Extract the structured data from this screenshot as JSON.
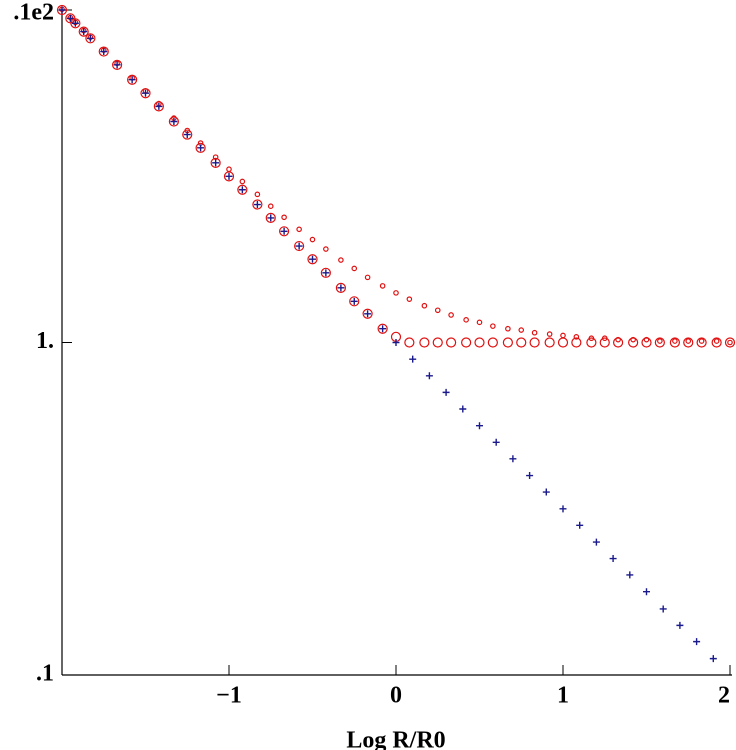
{
  "chart_data": {
    "type": "scatter",
    "x_label": "Log R/R0",
    "log_y": true,
    "xlim": [
      -2,
      2
    ],
    "ylim": [
      0.1,
      10
    ],
    "xticks": [
      {
        "value": -1,
        "label": "−1"
      },
      0,
      1,
      2
    ],
    "yticks": [
      {
        "value": 10,
        "label": ".1e2"
      },
      {
        "value": 1,
        "label": "1."
      },
      {
        "value": 0.1,
        "label": ".1"
      }
    ],
    "series": [
      {
        "marker": "large-circle",
        "color": "#e01010",
        "x": [
          -2,
          -1.95,
          -1.92,
          -1.87,
          -1.83,
          -1.75,
          -1.67,
          -1.58,
          -1.5,
          -1.42,
          -1.33,
          -1.25,
          -1.17,
          -1.08,
          -1,
          -0.92,
          -0.83,
          -0.75,
          -0.67,
          -0.58,
          -0.5,
          -0.42,
          -0.33,
          -0.25,
          -0.17,
          -0.08,
          0,
          0.08,
          0.17,
          0.25,
          0.33,
          0.42,
          0.5,
          0.58,
          0.67,
          0.75,
          0.83,
          0.92,
          1,
          1.08,
          1.17,
          1.25,
          1.33,
          1.42,
          1.5,
          1.58,
          1.67,
          1.75,
          1.83,
          1.92,
          2
        ],
        "values": [
          10,
          9.44,
          9.12,
          8.61,
          8.22,
          7.5,
          6.84,
          6.17,
          5.62,
          5.13,
          4.62,
          4.22,
          3.85,
          3.47,
          3.16,
          2.88,
          2.6,
          2.37,
          2.16,
          1.95,
          1.78,
          1.62,
          1.46,
          1.33,
          1.22,
          1.1,
          1.04,
          1,
          1,
          1,
          1,
          1,
          1,
          1,
          1,
          1,
          1,
          1,
          1,
          1,
          1,
          1,
          1,
          1,
          1,
          1,
          1,
          1,
          1,
          1,
          1
        ]
      },
      {
        "marker": "small-circle",
        "color": "#e01010",
        "x": [
          -2,
          -1.95,
          -1.92,
          -1.87,
          -1.83,
          -1.75,
          -1.67,
          -1.58,
          -1.5,
          -1.42,
          -1.33,
          -1.25,
          -1.17,
          -1.08,
          -1,
          -0.92,
          -0.83,
          -0.75,
          -0.67,
          -0.58,
          -0.5,
          -0.42,
          -0.33,
          -0.25,
          -0.17,
          -0.08,
          0,
          0.08,
          0.17,
          0.25,
          0.33,
          0.42,
          0.5,
          0.58,
          0.67,
          0.75,
          0.83,
          0.92,
          1,
          1.08,
          1.17,
          1.25,
          1.33,
          1.42,
          1.5,
          1.58,
          1.67,
          1.75,
          1.83,
          1.92,
          2
        ],
        "values": [
          10.05,
          9.49,
          9.18,
          8.67,
          8.28,
          7.57,
          6.91,
          6.25,
          5.71,
          5.23,
          4.73,
          4.34,
          3.98,
          3.61,
          3.32,
          3.05,
          2.79,
          2.57,
          2.38,
          2.19,
          2.04,
          1.91,
          1.77,
          1.67,
          1.57,
          1.48,
          1.41,
          1.35,
          1.29,
          1.25,
          1.21,
          1.17,
          1.15,
          1.12,
          1.1,
          1.09,
          1.07,
          1.06,
          1.05,
          1.04,
          1.03,
          1.03,
          1.02,
          1.02,
          1.02,
          1.01,
          1.01,
          1.01,
          1.01,
          1.01,
          1
        ]
      },
      {
        "marker": "plus",
        "color": "#1a1a8c",
        "x": [
          -2,
          -1.95,
          -1.92,
          -1.87,
          -1.83,
          -1.75,
          -1.67,
          -1.58,
          -1.5,
          -1.42,
          -1.33,
          -1.25,
          -1.17,
          -1.08,
          -1,
          -0.92,
          -0.83,
          -0.75,
          -0.67,
          -0.58,
          -0.5,
          -0.42,
          -0.33,
          -0.25,
          -0.17,
          -0.08,
          0,
          0.1,
          0.2,
          0.3,
          0.4,
          0.5,
          0.6,
          0.7,
          0.8,
          0.9,
          1,
          1.1,
          1.2,
          1.3,
          1.4,
          1.5,
          1.6,
          1.7,
          1.8,
          1.9
        ],
        "values": [
          10,
          9.44,
          9.12,
          8.61,
          8.22,
          7.5,
          6.84,
          6.17,
          5.62,
          5.13,
          4.62,
          4.22,
          3.85,
          3.47,
          3.16,
          2.88,
          2.6,
          2.37,
          2.16,
          1.95,
          1.78,
          1.62,
          1.46,
          1.33,
          1.22,
          1.1,
          1,
          0.891,
          0.794,
          0.708,
          0.631,
          0.562,
          0.501,
          0.447,
          0.398,
          0.355,
          0.316,
          0.282,
          0.251,
          0.224,
          0.2,
          0.178,
          0.158,
          0.141,
          0.126,
          0.112
        ]
      }
    ]
  }
}
